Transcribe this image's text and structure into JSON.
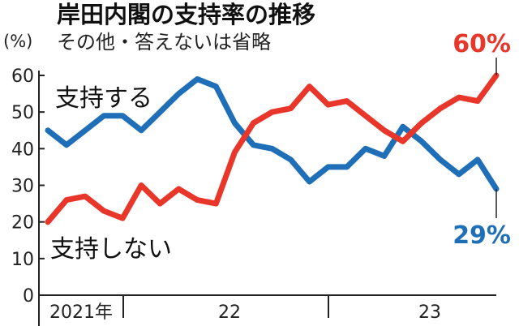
{
  "chart_data": {
    "type": "line",
    "title": "岸田内閣の支持率の推移",
    "subtitle": "その他・答えないは省略",
    "ylabel": "(%)",
    "ylim": [
      0,
      60
    ],
    "yticks": [
      0,
      10,
      20,
      30,
      40,
      50,
      60
    ],
    "x_labels": [
      "2021年",
      "22",
      "23"
    ],
    "grid": false,
    "colors": {
      "support": "#1f6fb8",
      "oppose": "#e8372a"
    },
    "series": [
      {
        "name": "支持する",
        "values": [
          45,
          41,
          45,
          49,
          49,
          45,
          50,
          55,
          59,
          57,
          47,
          41,
          40,
          37,
          31,
          35,
          35,
          40,
          38,
          46,
          42,
          37,
          33,
          37,
          29
        ],
        "end_label": "29%"
      },
      {
        "name": "支持しない",
        "values": [
          20,
          26,
          27,
          23,
          21,
          30,
          25,
          29,
          26,
          25,
          39,
          47,
          50,
          51,
          57,
          52,
          53,
          49,
          45,
          42,
          47,
          51,
          54,
          53,
          60
        ],
        "end_label": "60%"
      }
    ]
  }
}
